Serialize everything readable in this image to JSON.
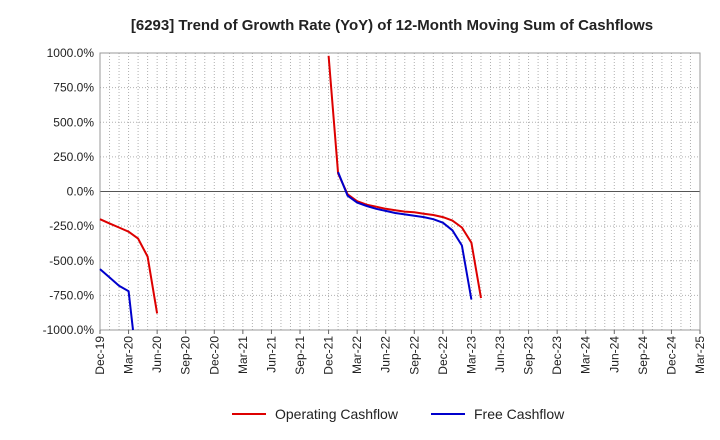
{
  "chart_data": {
    "type": "line",
    "title": "[6293]  Trend of Growth Rate (YoY) of 12-Month Moving Sum of Cashflows",
    "xlabel": "",
    "ylabel": "",
    "ylim": [
      -1000,
      1000
    ],
    "y_ticks": [
      "1000.0%",
      "750.0%",
      "500.0%",
      "250.0%",
      "0.0%",
      "-250.0%",
      "-500.0%",
      "-750.0%",
      "-1000.0%"
    ],
    "y_tick_values": [
      1000,
      750,
      500,
      250,
      0,
      -250,
      -500,
      -750,
      -1000
    ],
    "x_range": [
      "2019-12",
      "2025-03"
    ],
    "x_ticks": [
      "Dec-19",
      "Mar-20",
      "Jun-20",
      "Sep-20",
      "Dec-20",
      "Mar-21",
      "Jun-21",
      "Sep-21",
      "Dec-21",
      "Mar-22",
      "Jun-22",
      "Sep-22",
      "Dec-22",
      "Mar-23",
      "Jun-23",
      "Sep-23",
      "Dec-23",
      "Mar-24",
      "Jun-24",
      "Sep-24",
      "Dec-24",
      "Mar-25"
    ],
    "grid": true,
    "legend_position": "bottom-center",
    "series": [
      {
        "name": "Operating Cashflow",
        "color": "#dd0000",
        "segments": [
          [
            [
              "2019-12",
              -200
            ],
            [
              "2020-01",
              -230
            ],
            [
              "2020-02",
              -260
            ],
            [
              "2020-03",
              -290
            ],
            [
              "2020-04",
              -340
            ],
            [
              "2020-05",
              -470
            ],
            [
              "2020-06",
              -880
            ]
          ],
          [
            [
              "2021-12",
              980
            ],
            [
              "2022-01",
              130
            ],
            [
              "2022-02",
              -20
            ],
            [
              "2022-03",
              -70
            ],
            [
              "2022-04",
              -95
            ],
            [
              "2022-05",
              -110
            ],
            [
              "2022-06",
              -125
            ],
            [
              "2022-07",
              -135
            ],
            [
              "2022-08",
              -145
            ],
            [
              "2022-09",
              -150
            ],
            [
              "2022-10",
              -160
            ],
            [
              "2022-11",
              -170
            ],
            [
              "2022-12",
              -185
            ],
            [
              "2023-01",
              -210
            ],
            [
              "2023-02",
              -260
            ],
            [
              "2023-03",
              -370
            ],
            [
              "2023-04",
              -770
            ]
          ]
        ]
      },
      {
        "name": "Free Cashflow",
        "color": "#0000cc",
        "segments": [
          [
            [
              "2019-12",
              -560
            ],
            [
              "2020-01",
              -620
            ],
            [
              "2020-02",
              -680
            ],
            [
              "2020-03",
              -720
            ],
            [
              "2020-03-15",
              -1000
            ]
          ],
          [
            [
              "2022-01",
              140
            ],
            [
              "2022-02",
              -30
            ],
            [
              "2022-03",
              -80
            ],
            [
              "2022-04",
              -105
            ],
            [
              "2022-05",
              -125
            ],
            [
              "2022-06",
              -140
            ],
            [
              "2022-07",
              -155
            ],
            [
              "2022-08",
              -165
            ],
            [
              "2022-09",
              -175
            ],
            [
              "2022-10",
              -185
            ],
            [
              "2022-11",
              -200
            ],
            [
              "2022-12",
              -225
            ],
            [
              "2023-01",
              -280
            ],
            [
              "2023-02",
              -390
            ],
            [
              "2023-03",
              -780
            ]
          ]
        ]
      }
    ]
  }
}
